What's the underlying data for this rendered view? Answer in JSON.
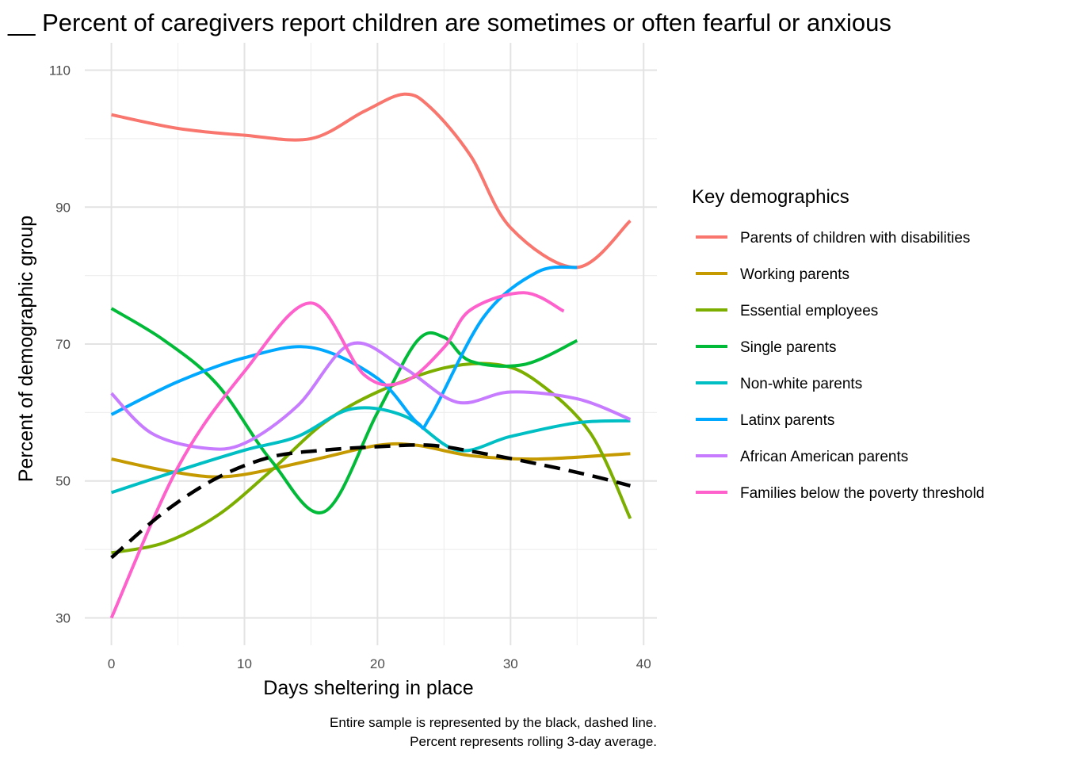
{
  "chart_data": {
    "type": "line",
    "title": "__ Percent of caregivers report children are sometimes or often fearful or anxious",
    "xlabel": "Days sheltering in place",
    "ylabel": "Percent of demographic group",
    "xlim": [
      -2,
      41
    ],
    "ylim": [
      26,
      114
    ],
    "x_ticks": [
      0,
      10,
      20,
      30,
      40
    ],
    "y_ticks": [
      30,
      50,
      70,
      90,
      110
    ],
    "grid": true,
    "legend": {
      "title": "Key demographics",
      "position": "right"
    },
    "caption": [
      "Entire sample is represented by the black, dashed line.",
      "Percent represents rolling 3-day average."
    ],
    "series": [
      {
        "name": "Parents of children with disabilities",
        "color": "#F8766D",
        "x": [
          0,
          5,
          10,
          15,
          19,
          22,
          24,
          27,
          30,
          35,
          39
        ],
        "y": [
          103.5,
          101.5,
          100.5,
          100,
          104,
          106.5,
          104.5,
          97.5,
          87,
          81.2,
          88
        ]
      },
      {
        "name": "Working parents",
        "color": "#C49A00",
        "x": [
          0,
          5,
          9,
          15,
          20,
          23,
          27,
          32,
          39
        ],
        "y": [
          53.2,
          51.2,
          50.7,
          53,
          55.2,
          55.2,
          53.7,
          53.2,
          54
        ]
      },
      {
        "name": "Essential employees",
        "color": "#7CAE00",
        "x": [
          0,
          4,
          8,
          12,
          16,
          20,
          25,
          29,
          32,
          36,
          39
        ],
        "y": [
          39.5,
          41,
          45,
          51.5,
          58.5,
          63,
          66.5,
          67,
          64.5,
          57,
          44.5
        ]
      },
      {
        "name": "Single parents",
        "color": "#00BA38",
        "x": [
          0,
          4,
          8,
          12,
          16,
          20,
          23,
          25,
          27,
          31,
          35
        ],
        "y": [
          75.2,
          70.5,
          64,
          53,
          45.5,
          60,
          70.5,
          71,
          67.5,
          67,
          70.5
        ]
      },
      {
        "name": "Non-white parents",
        "color": "#00BFC4",
        "x": [
          0,
          5,
          10,
          14,
          18,
          22,
          26,
          30,
          35,
          39
        ],
        "y": [
          48.3,
          51.5,
          54.5,
          56.5,
          60.5,
          59.5,
          54.5,
          56.5,
          58.5,
          58.8
        ]
      },
      {
        "name": "Latinx parents",
        "color": "#00A9FF",
        "x": [
          0,
          5,
          10,
          15,
          20,
          23,
          24,
          28,
          32,
          35
        ],
        "y": [
          59.7,
          64.5,
          68,
          69.5,
          65,
          58.5,
          59.5,
          74,
          80.5,
          81.2
        ]
      },
      {
        "name": "African American parents",
        "color": "#C77CFF",
        "x": [
          0,
          3,
          7,
          10,
          14,
          18,
          22,
          26,
          30,
          35,
          39
        ],
        "y": [
          62.8,
          57,
          54.8,
          55.5,
          61,
          70,
          66.5,
          61.5,
          63,
          62,
          59
        ]
      },
      {
        "name": "Families below the poverty threshold",
        "color": "#FF61CC",
        "x": [
          0,
          5,
          10,
          15,
          19,
          22,
          25,
          27,
          31,
          34
        ],
        "y": [
          30,
          52,
          66,
          76,
          65.5,
          64.5,
          69.5,
          75,
          77.5,
          74.8
        ]
      },
      {
        "name": "",
        "color": "#000000",
        "dashed": true,
        "x": [
          0,
          4,
          8,
          12,
          16,
          20,
          24,
          28,
          32,
          36,
          39
        ],
        "y": [
          38.8,
          45.5,
          50.5,
          53.5,
          54.5,
          55,
          55.2,
          54,
          52.5,
          50.8,
          49.3
        ]
      }
    ]
  }
}
